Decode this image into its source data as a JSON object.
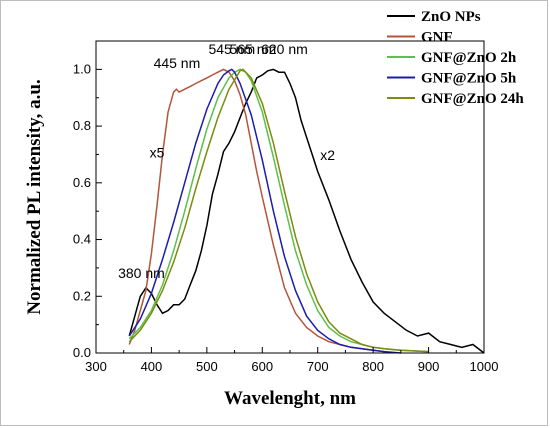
{
  "chart_data": {
    "type": "line",
    "xlabel": "Wavelenght, nm",
    "ylabel": "Normalized PL intensity, a.u.",
    "xlim": [
      300,
      1000
    ],
    "ylim": [
      0,
      1.1
    ],
    "x_ticks": [
      "300",
      "400",
      "500",
      "600",
      "700",
      "800",
      "900",
      "1000"
    ],
    "y_ticks": [
      "0.0",
      "0.2",
      "0.4",
      "0.6",
      "0.8",
      "1.0"
    ],
    "grid": false,
    "legend_position": "top-right",
    "annotations": [
      {
        "text": "380 nm",
        "x": 382,
        "y": 0.265
      },
      {
        "text": "445 nm",
        "x": 446,
        "y": 1.005
      },
      {
        "text": "545 nm",
        "x": 545,
        "y": 1.055
      },
      {
        "text": "565 nm",
        "x": 583,
        "y": 1.055
      },
      {
        "text": "620 nm",
        "x": 640,
        "y": 1.055
      },
      {
        "text": "x5",
        "x": 410,
        "y": 0.69
      },
      {
        "text": "x2",
        "x": 718,
        "y": 0.68
      }
    ],
    "series": [
      {
        "name": "ZnO NPs",
        "color": "#000000",
        "x": [
          360,
          370,
          380,
          390,
          400,
          410,
          420,
          430,
          440,
          450,
          460,
          470,
          480,
          490,
          500,
          510,
          520,
          530,
          540,
          550,
          560,
          570,
          580,
          590,
          600,
          610,
          620,
          630,
          640,
          650,
          660,
          670,
          680,
          690,
          700,
          720,
          740,
          760,
          780,
          800,
          820,
          840,
          860,
          880,
          900,
          920,
          940,
          960,
          980,
          1000
        ],
        "y": [
          0.06,
          0.13,
          0.2,
          0.23,
          0.21,
          0.17,
          0.14,
          0.15,
          0.17,
          0.17,
          0.19,
          0.24,
          0.29,
          0.36,
          0.45,
          0.56,
          0.63,
          0.71,
          0.74,
          0.78,
          0.83,
          0.88,
          0.92,
          0.97,
          0.98,
          0.995,
          1.0,
          0.99,
          0.99,
          0.95,
          0.9,
          0.82,
          0.76,
          0.7,
          0.64,
          0.54,
          0.43,
          0.33,
          0.25,
          0.18,
          0.14,
          0.11,
          0.08,
          0.06,
          0.07,
          0.04,
          0.03,
          0.02,
          0.03,
          0.0
        ]
      },
      {
        "name": "GNF",
        "color": "#b4553a",
        "x": [
          360,
          370,
          380,
          390,
          400,
          410,
          420,
          430,
          440,
          445,
          450,
          460,
          470,
          480,
          490,
          500,
          510,
          520,
          530,
          540,
          550,
          560,
          570,
          580,
          590,
          600,
          620,
          640,
          660,
          680,
          700,
          720,
          740,
          760,
          780,
          800,
          820
        ],
        "y": [
          0.03,
          0.08,
          0.15,
          0.22,
          0.35,
          0.52,
          0.7,
          0.85,
          0.92,
          0.93,
          0.92,
          0.93,
          0.94,
          0.95,
          0.96,
          0.97,
          0.98,
          0.99,
          1.0,
          0.99,
          0.96,
          0.91,
          0.84,
          0.74,
          0.64,
          0.55,
          0.38,
          0.23,
          0.14,
          0.09,
          0.06,
          0.04,
          0.03,
          0.02,
          0.015,
          0.01,
          0.005
        ]
      },
      {
        "name": "GNF@ZnO 2h",
        "color": "#5cc04a",
        "x": [
          360,
          380,
          400,
          420,
          440,
          460,
          480,
          500,
          520,
          540,
          550,
          560,
          570,
          580,
          600,
          620,
          640,
          660,
          680,
          700,
          720,
          740,
          760,
          780,
          800,
          820,
          850,
          900
        ],
        "y": [
          0.05,
          0.09,
          0.15,
          0.24,
          0.36,
          0.5,
          0.65,
          0.79,
          0.9,
          0.97,
          0.99,
          1.0,
          0.99,
          0.96,
          0.85,
          0.69,
          0.52,
          0.36,
          0.24,
          0.15,
          0.09,
          0.06,
          0.04,
          0.03,
          0.02,
          0.015,
          0.01,
          0.005
        ]
      },
      {
        "name": "GNF@ZnO 5h",
        "color": "#1c1cad",
        "x": [
          360,
          380,
          400,
          420,
          440,
          460,
          480,
          500,
          520,
          530,
          540,
          545,
          550,
          560,
          580,
          600,
          620,
          640,
          660,
          680,
          700,
          720,
          740,
          760,
          780,
          800,
          820,
          850
        ],
        "y": [
          0.06,
          0.12,
          0.21,
          0.33,
          0.46,
          0.6,
          0.74,
          0.86,
          0.95,
          0.98,
          0.995,
          1.0,
          0.99,
          0.95,
          0.84,
          0.68,
          0.5,
          0.34,
          0.22,
          0.13,
          0.08,
          0.05,
          0.03,
          0.02,
          0.015,
          0.01,
          0.005,
          0.0
        ]
      },
      {
        "name": "GNF@ZnO 24h",
        "color": "#7b8c0e",
        "x": [
          360,
          380,
          400,
          420,
          440,
          460,
          480,
          500,
          520,
          540,
          560,
          565,
          570,
          580,
          600,
          620,
          640,
          660,
          680,
          700,
          720,
          740,
          760,
          780,
          800,
          820,
          850,
          900
        ],
        "y": [
          0.04,
          0.08,
          0.14,
          0.22,
          0.32,
          0.44,
          0.58,
          0.71,
          0.83,
          0.93,
          0.995,
          1.0,
          0.99,
          0.97,
          0.88,
          0.74,
          0.57,
          0.41,
          0.28,
          0.18,
          0.11,
          0.07,
          0.05,
          0.03,
          0.02,
          0.015,
          0.01,
          0.005
        ]
      }
    ]
  }
}
